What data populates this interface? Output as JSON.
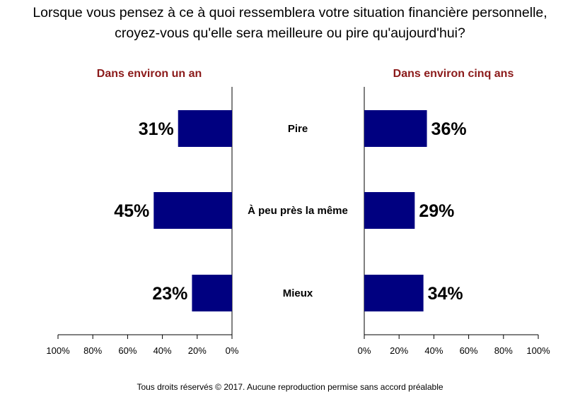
{
  "title_lines": [
    "Lorsque vous pensez à ce à quoi ressemblera votre situation financière personnelle,",
    "croyez-vous qu'elle sera meilleure ou pire qu'aujourd'hui?"
  ],
  "footer": "Tous droits réservés © 2017. Aucune reproduction  permise sans accord préalable",
  "colors": {
    "bar": "#000080",
    "panel_title": "#8b1a1a",
    "text": "#000000"
  },
  "chart_data": [
    {
      "type": "bar",
      "orientation": "horizontal",
      "direction": "leftward",
      "title": "Dans environ un an",
      "categories": [
        "Pire",
        "À peu près la même",
        "Mieux"
      ],
      "values": [
        31,
        45,
        23
      ],
      "value_labels": [
        "31%",
        "45%",
        "23%"
      ],
      "xlim": [
        0,
        100
      ],
      "tick_labels": [
        "100%",
        "80%",
        "60%",
        "40%",
        "20%",
        "0%"
      ],
      "grid": false
    },
    {
      "type": "bar",
      "orientation": "horizontal",
      "direction": "rightward",
      "title": "Dans environ cinq ans",
      "categories": [
        "Pire",
        "À peu près la même",
        "Mieux"
      ],
      "values": [
        36,
        29,
        34
      ],
      "value_labels": [
        "36%",
        "29%",
        "34%"
      ],
      "xlim": [
        0,
        100
      ],
      "tick_labels": [
        "0%",
        "20%",
        "40%",
        "60%",
        "80%",
        "100%"
      ],
      "grid": false
    }
  ]
}
